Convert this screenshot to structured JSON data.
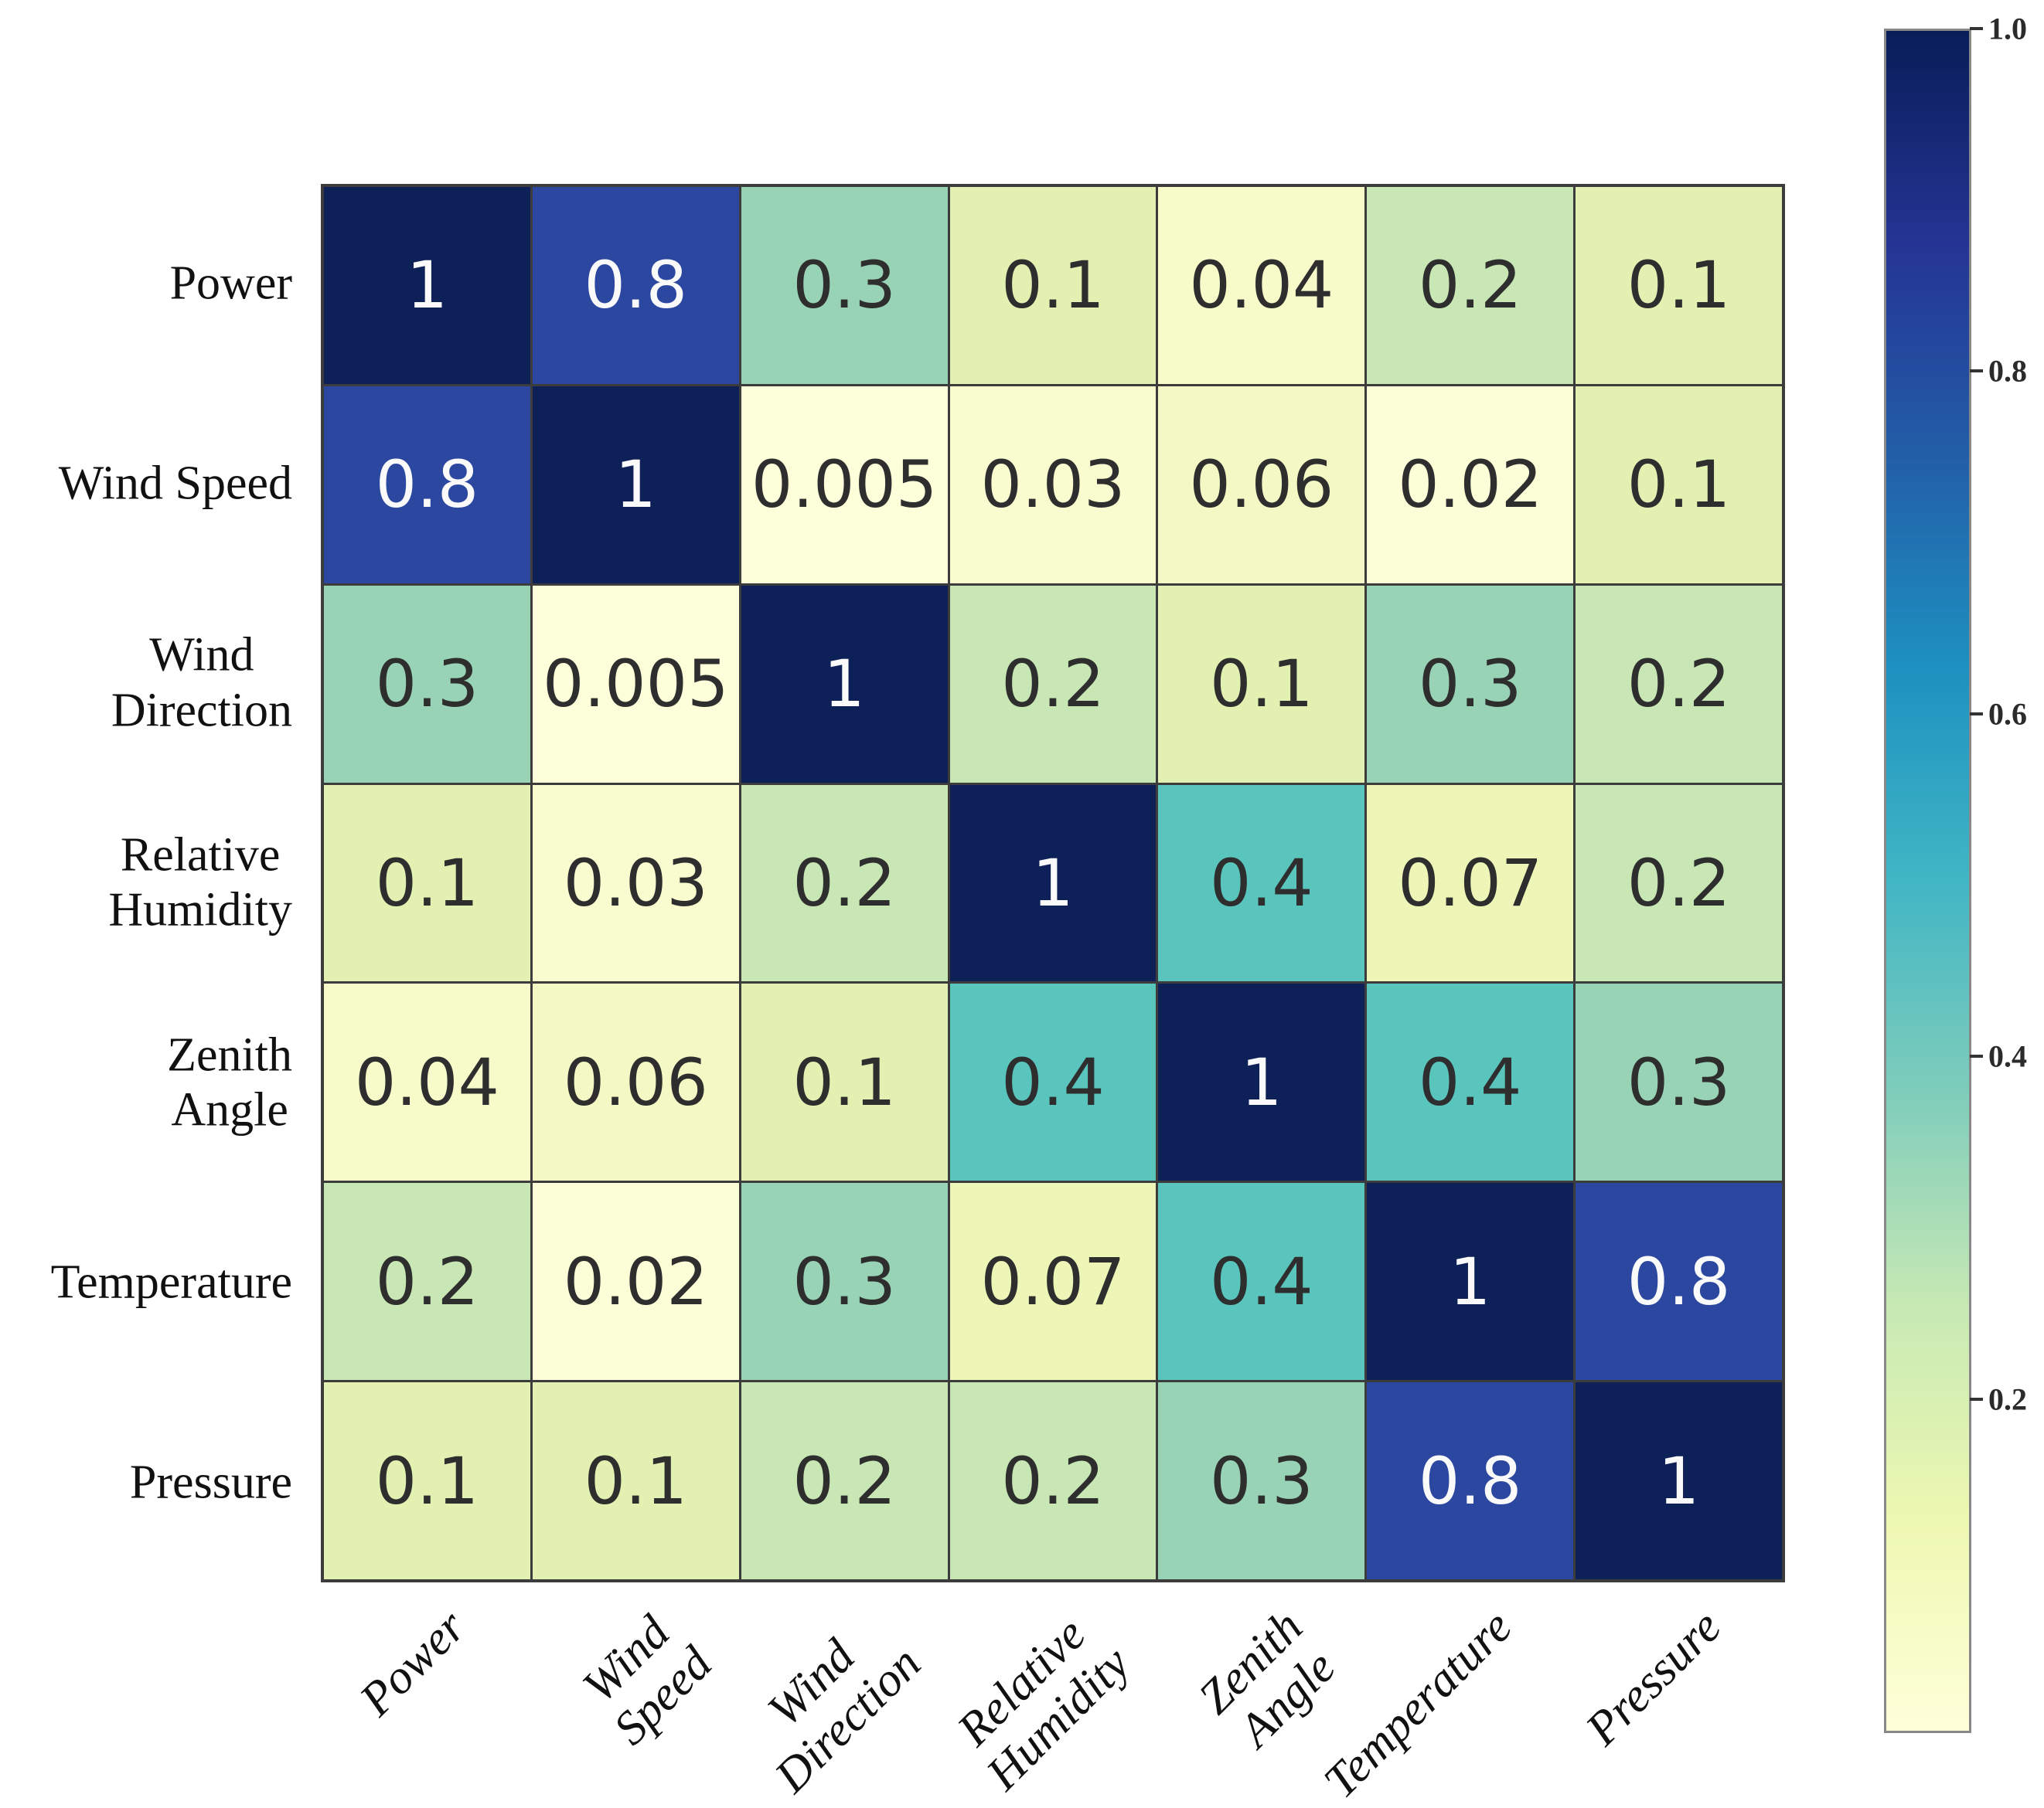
{
  "chart_data": {
    "type": "heatmap",
    "variables": [
      "Power",
      "Wind Speed",
      "Wind Direction",
      "Relative Humidity",
      "Zenith Angle",
      "Temperature",
      "Pressure"
    ],
    "y_tick_labels": [
      [
        "Power"
      ],
      [
        "Wind Speed"
      ],
      [
        "Wind",
        "Direction"
      ],
      [
        "Relative",
        "Humidity"
      ],
      [
        "Zenith",
        "Angle"
      ],
      [
        "Temperature"
      ],
      [
        "Pressure"
      ]
    ],
    "x_tick_labels": [
      [
        "Power"
      ],
      [
        "Wind",
        "Speed"
      ],
      [
        "Wind",
        "Direction"
      ],
      [
        "Relative",
        "Humidity"
      ],
      [
        "Zenith",
        "Angle"
      ],
      [
        "Temperature"
      ],
      [
        "Pressure"
      ]
    ],
    "matrix": [
      [
        1,
        0.8,
        0.3,
        0.1,
        0.04,
        0.2,
        0.1
      ],
      [
        0.8,
        1,
        0.005,
        0.03,
        0.06,
        0.02,
        0.1
      ],
      [
        0.3,
        0.005,
        1,
        0.2,
        0.1,
        0.3,
        0.2
      ],
      [
        0.1,
        0.03,
        0.2,
        1,
        0.4,
        0.07,
        0.2
      ],
      [
        0.04,
        0.06,
        0.1,
        0.4,
        1,
        0.4,
        0.3
      ],
      [
        0.2,
        0.02,
        0.3,
        0.07,
        0.4,
        1,
        0.8
      ],
      [
        0.1,
        0.1,
        0.2,
        0.2,
        0.3,
        0.8,
        1
      ]
    ],
    "value_colors": {
      "1": "#0d2058",
      "0.8": "#2c479f",
      "0.4": "#5ac5bd",
      "0.3": "#99d3b5",
      "0.2": "#c8e7b5",
      "0.1": "#e2f1b2",
      "0.07": "#edf6b6",
      "0.06": "#f4f8c4",
      "0.04": "#f7fbc9",
      "0.03": "#f9fccf",
      "0.02": "#fbfed6",
      "0.005": "#fcffd9"
    },
    "cell_text_dark": "#2e2e2e",
    "cell_text_light": "#fafafa",
    "light_text_min_value": 0.8,
    "grid_line_color": "#3c3c3c",
    "axis_label_color": "#111111",
    "grid_on": true,
    "legend_position": "right-colorbar",
    "colorbar": {
      "vmin": 0.005,
      "vmax": 1.0,
      "ticks": [
        {
          "value": 1.0,
          "label": "1.0"
        },
        {
          "value": 0.8,
          "label": "0.8"
        },
        {
          "value": 0.6,
          "label": "0.6"
        },
        {
          "value": 0.4,
          "label": "0.4"
        },
        {
          "value": 0.2,
          "label": "0.2"
        }
      ],
      "cmap_name": "YlGnBu",
      "cmap_stops": [
        {
          "t": 1.0,
          "color": "#081d58"
        },
        {
          "t": 0.875,
          "color": "#253494"
        },
        {
          "t": 0.75,
          "color": "#225ea8"
        },
        {
          "t": 0.625,
          "color": "#1d91c0"
        },
        {
          "t": 0.5,
          "color": "#41b6c4"
        },
        {
          "t": 0.375,
          "color": "#7fcdbb"
        },
        {
          "t": 0.25,
          "color": "#c7e9b4"
        },
        {
          "t": 0.125,
          "color": "#edf8b1"
        },
        {
          "t": 0.0,
          "color": "#ffffd9"
        }
      ],
      "border_color": "#888888",
      "tick_color": "#333333",
      "label_color": "#2b2b2b"
    }
  }
}
